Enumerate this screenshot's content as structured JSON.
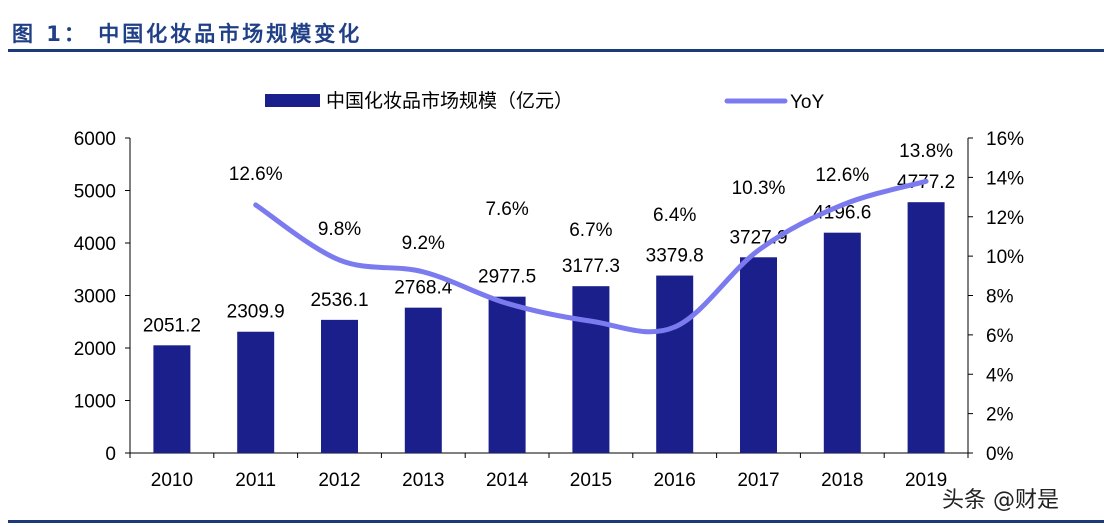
{
  "title": "图 1： 中国化妆品市场规模变化",
  "watermark": "头条 @财是",
  "chart_data": {
    "type": "bar+line",
    "categories": [
      "2010",
      "2011",
      "2012",
      "2013",
      "2014",
      "2015",
      "2016",
      "2017",
      "2018",
      "2019"
    ],
    "series": [
      {
        "name": "中国化妆品市场规模（亿元）",
        "type": "bar",
        "axis": "left",
        "color": "#1a1f8c",
        "values": [
          2051.2,
          2309.9,
          2536.1,
          2768.4,
          2977.5,
          3177.3,
          3379.8,
          3727.9,
          4196.6,
          4777.2
        ],
        "labels": [
          "2051.2",
          "2309.9",
          "2536.1",
          "2768.4",
          "2977.5",
          "3177.3",
          "3379.8",
          "3727.9",
          "4196.6",
          "4777.2"
        ]
      },
      {
        "name": "YoY",
        "type": "line",
        "axis": "right",
        "color": "#7b7bef",
        "values": [
          null,
          12.6,
          9.8,
          9.2,
          7.6,
          6.7,
          6.4,
          10.3,
          12.6,
          13.8
        ],
        "labels": [
          "",
          "12.6%",
          "9.8%",
          "9.2%",
          "7.6%",
          "6.7%",
          "6.4%",
          "10.3%",
          "12.6%",
          "13.8%"
        ]
      }
    ],
    "y_left": {
      "min": 0,
      "max": 6000,
      "ticks": [
        "0",
        "1000",
        "2000",
        "3000",
        "4000",
        "5000",
        "6000"
      ]
    },
    "y_right": {
      "min": 0,
      "max": 16,
      "ticks": [
        "0%",
        "2%",
        "4%",
        "6%",
        "8%",
        "10%",
        "12%",
        "14%",
        "16%"
      ]
    },
    "legend": "top",
    "grid": false
  }
}
